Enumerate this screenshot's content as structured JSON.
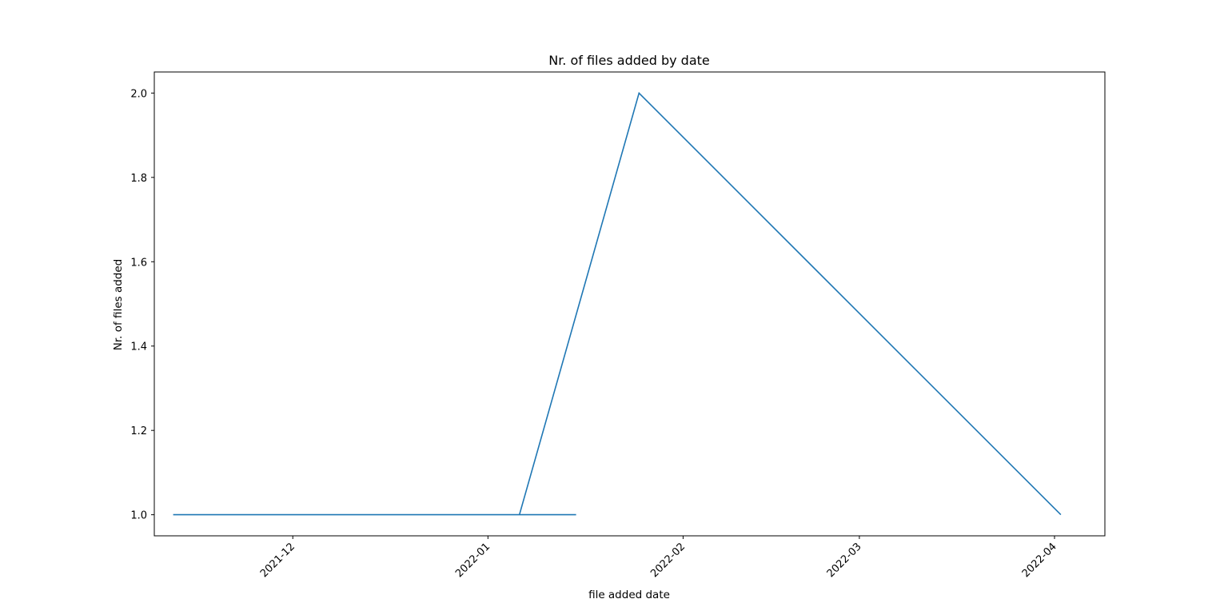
{
  "chart_data": {
    "type": "line",
    "title": "Nr. of files added by date",
    "xlabel": "file added date",
    "ylabel": "Nr. of files added",
    "x_axis_type": "date",
    "xlim": [
      "2021-11-09",
      "2022-04-09"
    ],
    "ylim": [
      0.95,
      2.05
    ],
    "grid": false,
    "x_ticks": [
      "2021-12",
      "2022-01",
      "2022-02",
      "2022-03",
      "2022-04"
    ],
    "y_ticks": [
      "1.0",
      "1.2",
      "1.4",
      "1.6",
      "1.8",
      "2.0"
    ],
    "series": [
      {
        "color": "#1f77b4",
        "points": [
          {
            "x": "2021-11-12",
            "y": 1
          },
          {
            "x": "2021-11-13",
            "y": 1
          },
          {
            "x": "2021-11-12",
            "y": 1
          },
          {
            "x": "2022-01-15",
            "y": 1
          },
          {
            "x": "2022-01-06",
            "y": 1
          },
          {
            "x": "2022-01-25",
            "y": 2
          },
          {
            "x": "2022-04-02",
            "y": 1
          }
        ]
      }
    ]
  }
}
